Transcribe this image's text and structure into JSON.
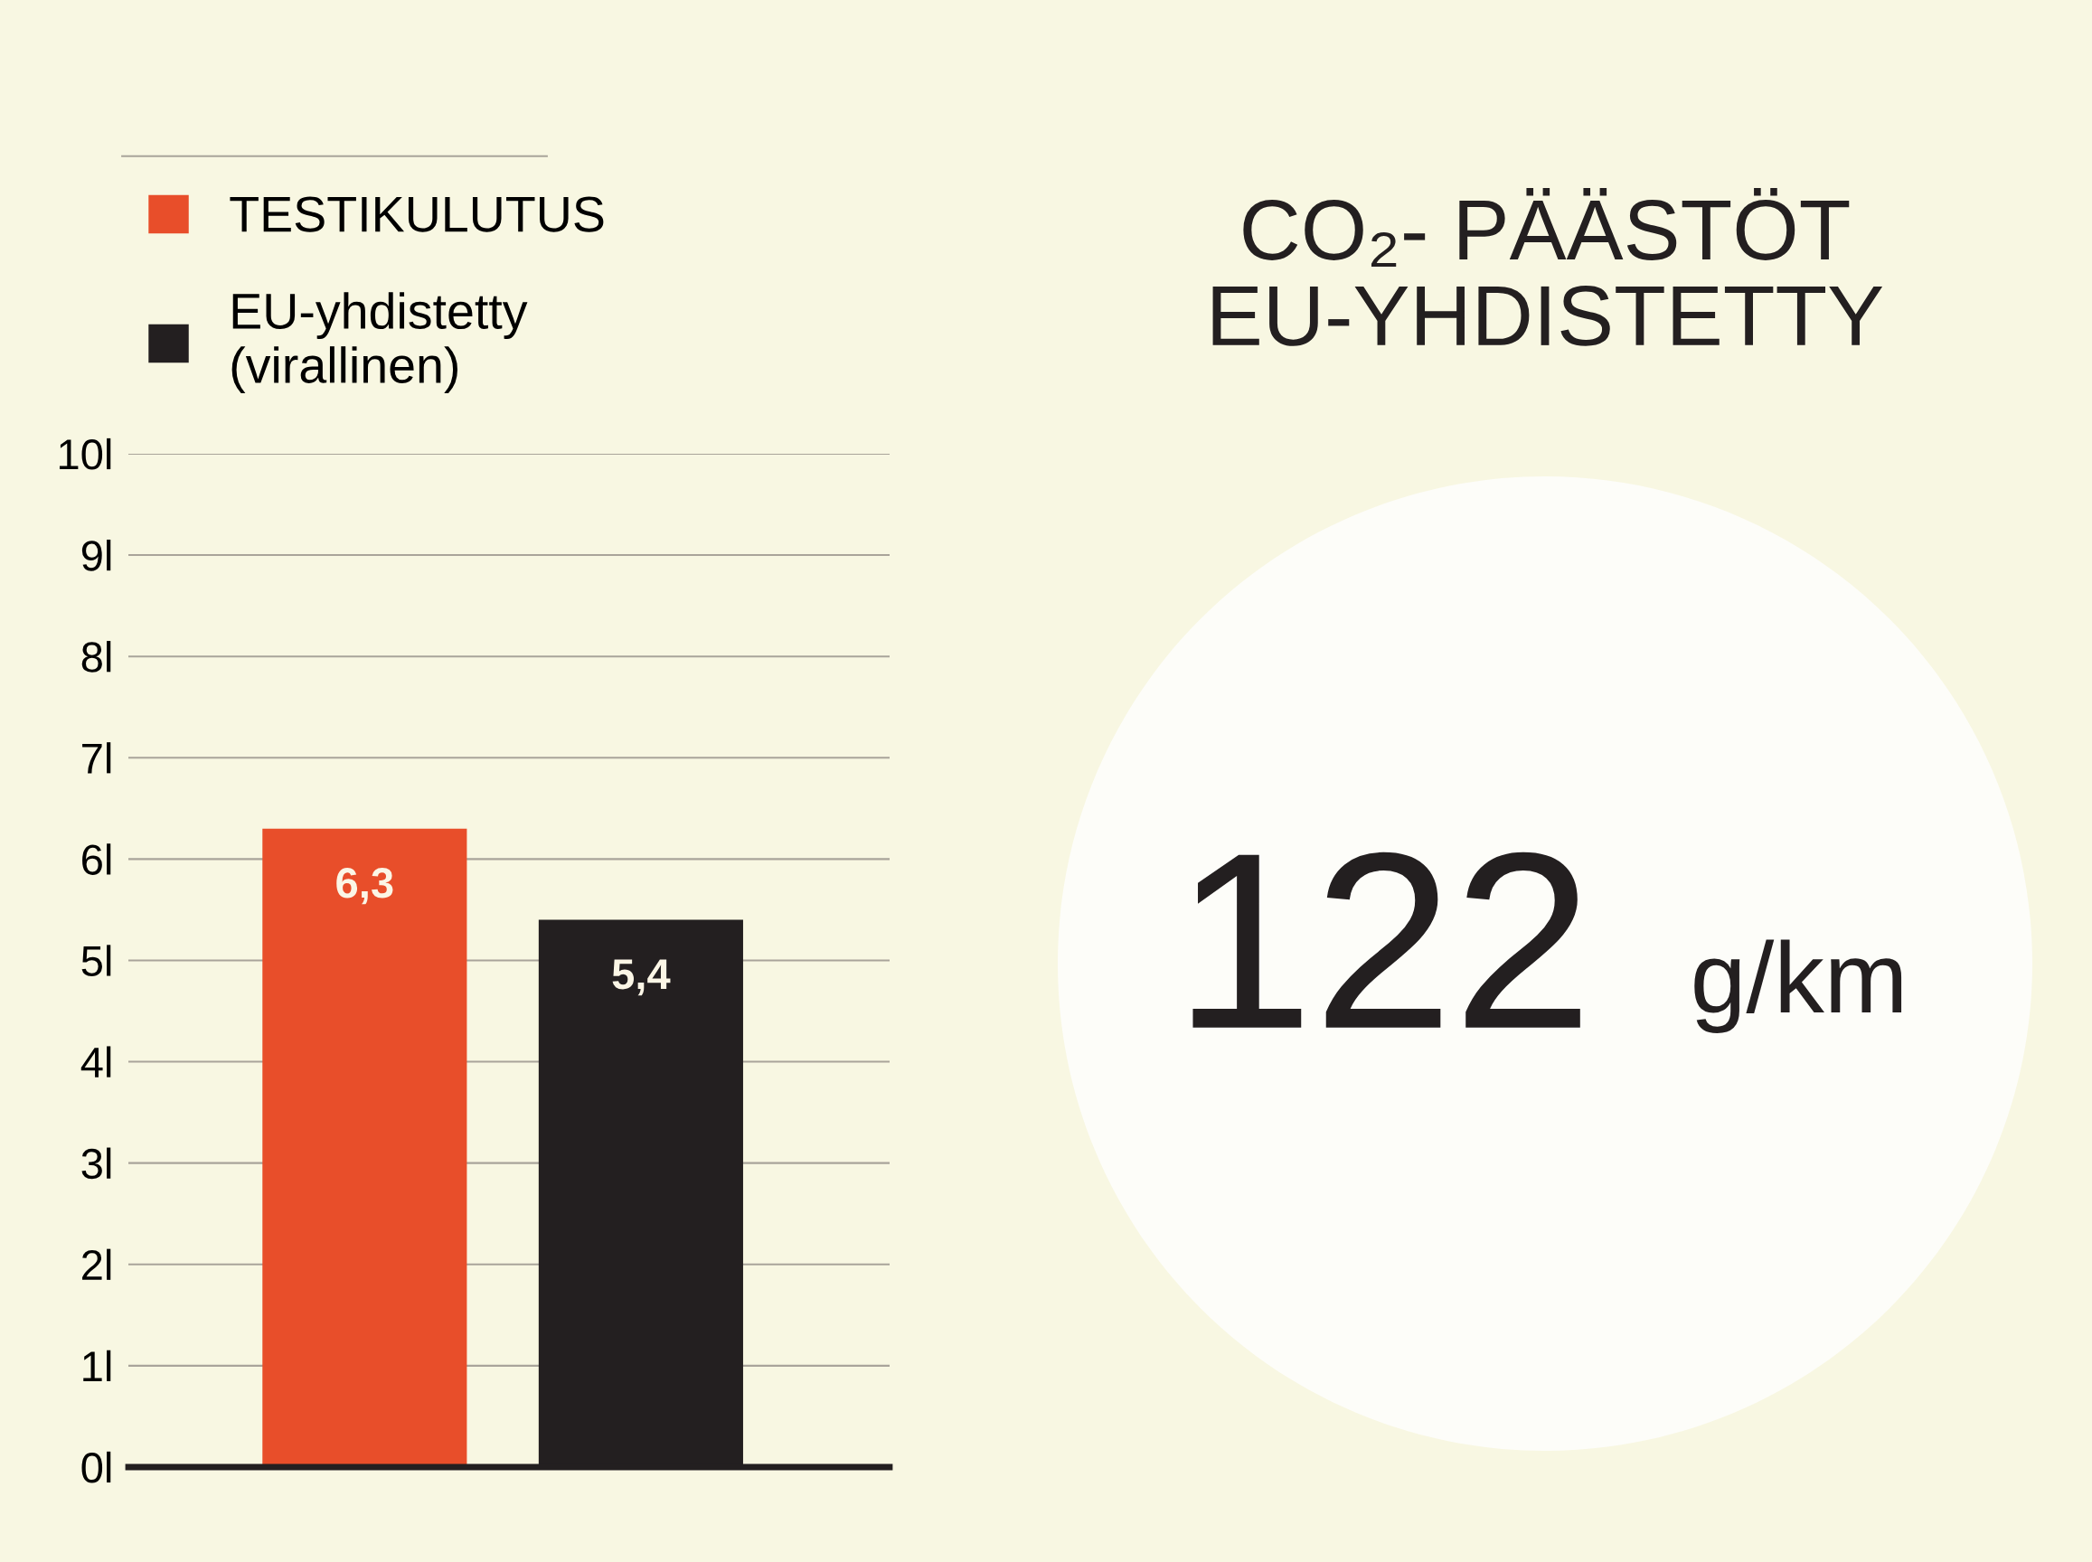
{
  "chart_data": [
    {
      "type": "bar",
      "categories": [
        null,
        null
      ],
      "series": [
        {
          "name": "TESTIKULUTUS",
          "color": "#e84e2a",
          "values": [
            6.3,
            null
          ],
          "value_labels": [
            "6,3",
            null
          ]
        },
        {
          "name": "EU-yhdistetty\n(virallinen)",
          "color": "#231f20",
          "values": [
            null,
            5.4
          ],
          "value_labels": [
            null,
            "5,4"
          ]
        }
      ],
      "ylim": [
        0,
        10
      ],
      "yticks": [
        {
          "value": 0,
          "label": "0l"
        },
        {
          "value": 1,
          "label": "1l"
        },
        {
          "value": 2,
          "label": "2l"
        },
        {
          "value": 3,
          "label": "3l"
        },
        {
          "value": 4,
          "label": "4l"
        },
        {
          "value": 5,
          "label": "5l"
        },
        {
          "value": 6,
          "label": "6l"
        },
        {
          "value": 7,
          "label": "7l"
        },
        {
          "value": 8,
          "label": "8l"
        },
        {
          "value": 9,
          "label": "9l"
        },
        {
          "value": 10,
          "label": "10l"
        }
      ],
      "grid": "y",
      "legend": "top left",
      "tick_labels": "y"
    },
    {
      "type": "other",
      "title": "CO₂- PÄÄSTÖT\nEU-YHDISTETTY",
      "annotations": [
        "122",
        "g/km"
      ]
    }
  ]
}
